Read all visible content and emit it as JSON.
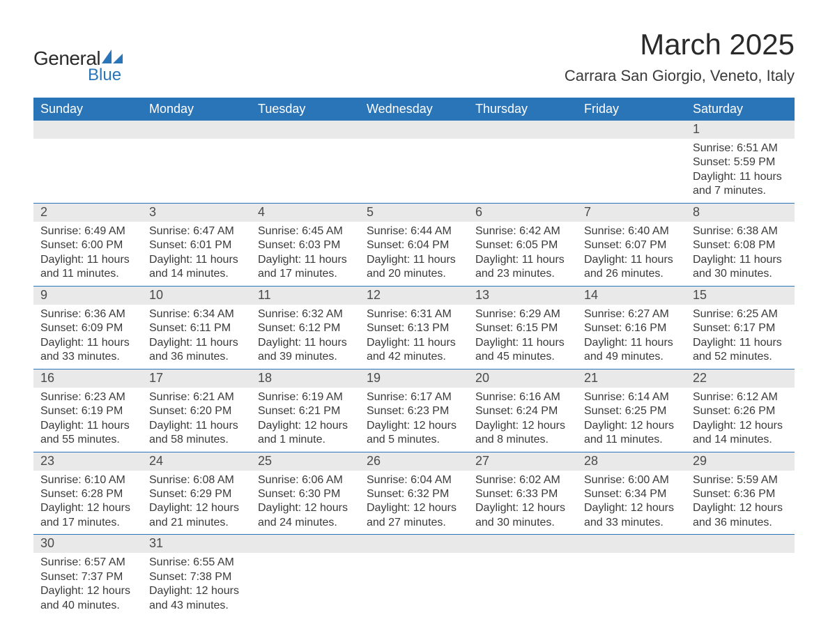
{
  "logo": {
    "text1": "General",
    "text2": "Blue"
  },
  "title": "March 2025",
  "location": "Carrara San Giorgio, Veneto, Italy",
  "colors": {
    "header_bg": "#2a74b8",
    "daybar_bg": "#e9e9e9",
    "border": "#2a74b8",
    "text": "#3a3a3a"
  },
  "day_headers": [
    "Sunday",
    "Monday",
    "Tuesday",
    "Wednesday",
    "Thursday",
    "Friday",
    "Saturday"
  ],
  "weeks": [
    [
      {
        "empty": true
      },
      {
        "empty": true
      },
      {
        "empty": true
      },
      {
        "empty": true
      },
      {
        "empty": true
      },
      {
        "empty": true
      },
      {
        "day": "1",
        "sunrise": "Sunrise: 6:51 AM",
        "sunset": "Sunset: 5:59 PM",
        "daylight": "Daylight: 11 hours and 7 minutes."
      }
    ],
    [
      {
        "day": "2",
        "sunrise": "Sunrise: 6:49 AM",
        "sunset": "Sunset: 6:00 PM",
        "daylight": "Daylight: 11 hours and 11 minutes."
      },
      {
        "day": "3",
        "sunrise": "Sunrise: 6:47 AM",
        "sunset": "Sunset: 6:01 PM",
        "daylight": "Daylight: 11 hours and 14 minutes."
      },
      {
        "day": "4",
        "sunrise": "Sunrise: 6:45 AM",
        "sunset": "Sunset: 6:03 PM",
        "daylight": "Daylight: 11 hours and 17 minutes."
      },
      {
        "day": "5",
        "sunrise": "Sunrise: 6:44 AM",
        "sunset": "Sunset: 6:04 PM",
        "daylight": "Daylight: 11 hours and 20 minutes."
      },
      {
        "day": "6",
        "sunrise": "Sunrise: 6:42 AM",
        "sunset": "Sunset: 6:05 PM",
        "daylight": "Daylight: 11 hours and 23 minutes."
      },
      {
        "day": "7",
        "sunrise": "Sunrise: 6:40 AM",
        "sunset": "Sunset: 6:07 PM",
        "daylight": "Daylight: 11 hours and 26 minutes."
      },
      {
        "day": "8",
        "sunrise": "Sunrise: 6:38 AM",
        "sunset": "Sunset: 6:08 PM",
        "daylight": "Daylight: 11 hours and 30 minutes."
      }
    ],
    [
      {
        "day": "9",
        "sunrise": "Sunrise: 6:36 AM",
        "sunset": "Sunset: 6:09 PM",
        "daylight": "Daylight: 11 hours and 33 minutes."
      },
      {
        "day": "10",
        "sunrise": "Sunrise: 6:34 AM",
        "sunset": "Sunset: 6:11 PM",
        "daylight": "Daylight: 11 hours and 36 minutes."
      },
      {
        "day": "11",
        "sunrise": "Sunrise: 6:32 AM",
        "sunset": "Sunset: 6:12 PM",
        "daylight": "Daylight: 11 hours and 39 minutes."
      },
      {
        "day": "12",
        "sunrise": "Sunrise: 6:31 AM",
        "sunset": "Sunset: 6:13 PM",
        "daylight": "Daylight: 11 hours and 42 minutes."
      },
      {
        "day": "13",
        "sunrise": "Sunrise: 6:29 AM",
        "sunset": "Sunset: 6:15 PM",
        "daylight": "Daylight: 11 hours and 45 minutes."
      },
      {
        "day": "14",
        "sunrise": "Sunrise: 6:27 AM",
        "sunset": "Sunset: 6:16 PM",
        "daylight": "Daylight: 11 hours and 49 minutes."
      },
      {
        "day": "15",
        "sunrise": "Sunrise: 6:25 AM",
        "sunset": "Sunset: 6:17 PM",
        "daylight": "Daylight: 11 hours and 52 minutes."
      }
    ],
    [
      {
        "day": "16",
        "sunrise": "Sunrise: 6:23 AM",
        "sunset": "Sunset: 6:19 PM",
        "daylight": "Daylight: 11 hours and 55 minutes."
      },
      {
        "day": "17",
        "sunrise": "Sunrise: 6:21 AM",
        "sunset": "Sunset: 6:20 PM",
        "daylight": "Daylight: 11 hours and 58 minutes."
      },
      {
        "day": "18",
        "sunrise": "Sunrise: 6:19 AM",
        "sunset": "Sunset: 6:21 PM",
        "daylight": "Daylight: 12 hours and 1 minute."
      },
      {
        "day": "19",
        "sunrise": "Sunrise: 6:17 AM",
        "sunset": "Sunset: 6:23 PM",
        "daylight": "Daylight: 12 hours and 5 minutes."
      },
      {
        "day": "20",
        "sunrise": "Sunrise: 6:16 AM",
        "sunset": "Sunset: 6:24 PM",
        "daylight": "Daylight: 12 hours and 8 minutes."
      },
      {
        "day": "21",
        "sunrise": "Sunrise: 6:14 AM",
        "sunset": "Sunset: 6:25 PM",
        "daylight": "Daylight: 12 hours and 11 minutes."
      },
      {
        "day": "22",
        "sunrise": "Sunrise: 6:12 AM",
        "sunset": "Sunset: 6:26 PM",
        "daylight": "Daylight: 12 hours and 14 minutes."
      }
    ],
    [
      {
        "day": "23",
        "sunrise": "Sunrise: 6:10 AM",
        "sunset": "Sunset: 6:28 PM",
        "daylight": "Daylight: 12 hours and 17 minutes."
      },
      {
        "day": "24",
        "sunrise": "Sunrise: 6:08 AM",
        "sunset": "Sunset: 6:29 PM",
        "daylight": "Daylight: 12 hours and 21 minutes."
      },
      {
        "day": "25",
        "sunrise": "Sunrise: 6:06 AM",
        "sunset": "Sunset: 6:30 PM",
        "daylight": "Daylight: 12 hours and 24 minutes."
      },
      {
        "day": "26",
        "sunrise": "Sunrise: 6:04 AM",
        "sunset": "Sunset: 6:32 PM",
        "daylight": "Daylight: 12 hours and 27 minutes."
      },
      {
        "day": "27",
        "sunrise": "Sunrise: 6:02 AM",
        "sunset": "Sunset: 6:33 PM",
        "daylight": "Daylight: 12 hours and 30 minutes."
      },
      {
        "day": "28",
        "sunrise": "Sunrise: 6:00 AM",
        "sunset": "Sunset: 6:34 PM",
        "daylight": "Daylight: 12 hours and 33 minutes."
      },
      {
        "day": "29",
        "sunrise": "Sunrise: 5:59 AM",
        "sunset": "Sunset: 6:36 PM",
        "daylight": "Daylight: 12 hours and 36 minutes."
      }
    ],
    [
      {
        "day": "30",
        "sunrise": "Sunrise: 6:57 AM",
        "sunset": "Sunset: 7:37 PM",
        "daylight": "Daylight: 12 hours and 40 minutes."
      },
      {
        "day": "31",
        "sunrise": "Sunrise: 6:55 AM",
        "sunset": "Sunset: 7:38 PM",
        "daylight": "Daylight: 12 hours and 43 minutes."
      },
      {
        "empty": true
      },
      {
        "empty": true
      },
      {
        "empty": true
      },
      {
        "empty": true
      },
      {
        "empty": true
      }
    ]
  ]
}
